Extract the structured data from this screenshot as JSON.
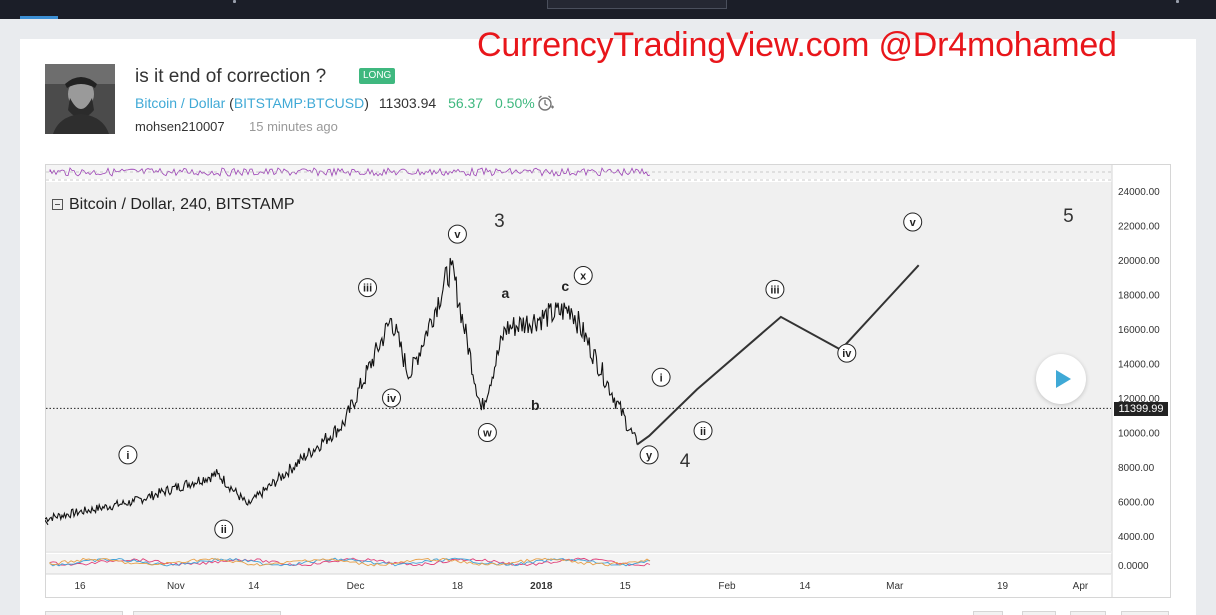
{
  "header": {
    "watermark": "CurrencyTradingView.com @Dr4mohamed"
  },
  "idea": {
    "title": "is it end of correction ?",
    "badge": "LONG",
    "symbol_name": "Bitcoin / Dollar",
    "symbol_code": "BITSTAMP:BTCUSD",
    "last_price": "11303.94",
    "change": "56.37",
    "change_pct": "0.50%",
    "author": "mohsen210007",
    "time_ago": "15 minutes ago"
  },
  "chart": {
    "legend": "Bitcoin / Dollar, 240, BITSTAMP",
    "current_price_label": "11399.99",
    "y_ticks": [
      "24000.00",
      "22000.00",
      "20000.00",
      "18000.00",
      "16000.00",
      "14000.00",
      "12000.00",
      "10000.00",
      "8000.00",
      "6000.00",
      "4000.00"
    ],
    "osc_tick": "0.0000",
    "x_ticks": [
      "16",
      "Nov",
      "14",
      "Dec",
      "18",
      "2018",
      "15",
      "Feb",
      "14",
      "Mar",
      "19",
      "Apr"
    ],
    "wave_labels": [
      "i",
      "ii",
      "iii",
      "iv",
      "v",
      "w",
      "x",
      "y",
      "i",
      "ii",
      "iii",
      "iv",
      "v"
    ],
    "big_labels": [
      "3",
      "4",
      "5"
    ],
    "abc_labels": [
      "a",
      "b",
      "c"
    ]
  },
  "chart_data": {
    "type": "line",
    "title": "Bitcoin / Dollar, 240, BITSTAMP",
    "ylim": [
      3000,
      25000
    ],
    "x": [
      "2017-10-10",
      "2017-10-25",
      "2017-11-08",
      "2017-11-13",
      "2017-11-29",
      "2017-12-07",
      "2017-12-10",
      "2017-12-17",
      "2017-12-22",
      "2017-12-26",
      "2018-01-06",
      "2018-01-17",
      "2018-01-19",
      "2018-01-27",
      "2018-02-10",
      "2018-02-20",
      "2018-03-05"
    ],
    "series": [
      {
        "values": [
          5000,
          6000,
          7600,
          5800,
          10500,
          16600,
          13200,
          19700,
          11300,
          16000,
          17200,
          9300,
          9800,
          12500,
          16700,
          14800,
          19700
        ]
      }
    ]
  }
}
